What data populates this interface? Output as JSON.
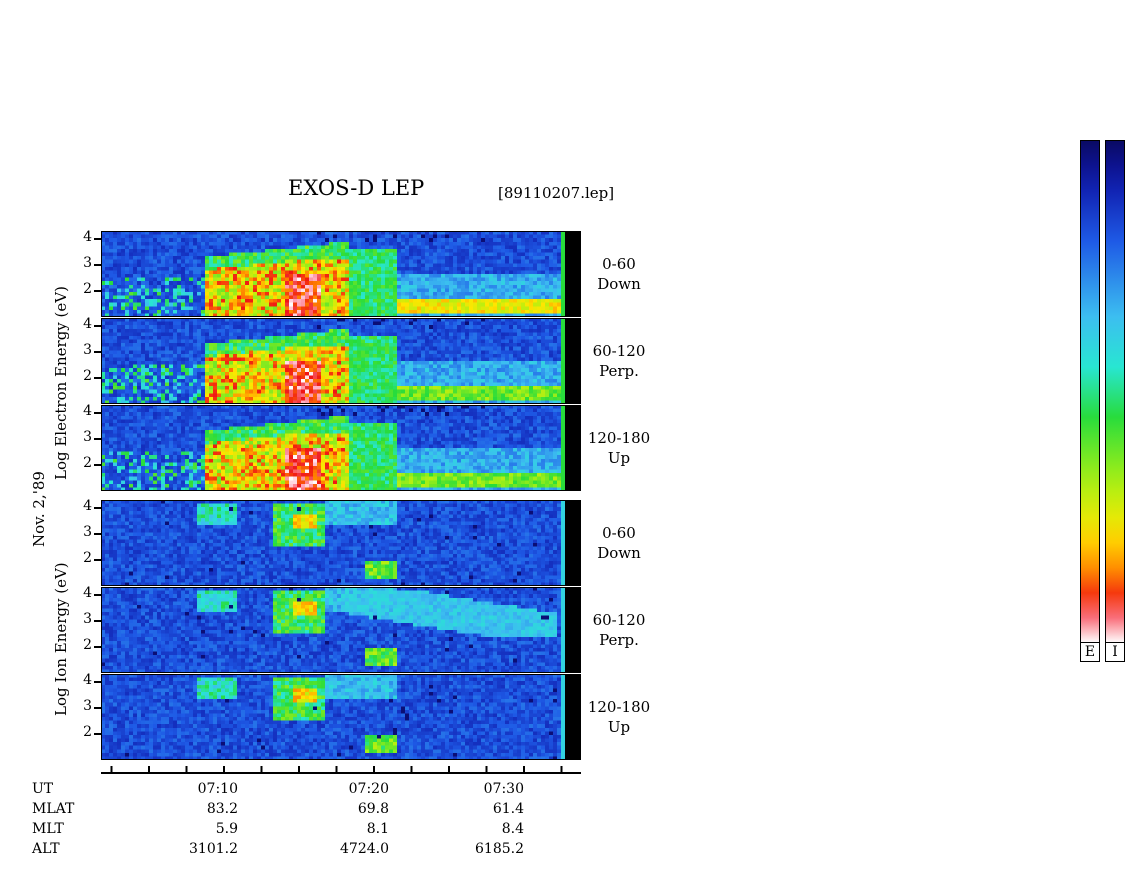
{
  "title": "EXOS-D LEP",
  "file_label": "[89110207.lep]",
  "date_label": "Nov. 2,'89",
  "electron_axis_label": "Log   Electron   Energy (eV)",
  "ion_axis_label": "Log   Ion   Energy (eV)",
  "chart_data": {
    "type": "heatmap",
    "panels": [
      {
        "species": "Electron",
        "pitch_range": "0-60",
        "direction": "Down",
        "y_ticks": [
          "4",
          "3",
          "2"
        ]
      },
      {
        "species": "Electron",
        "pitch_range": "60-120",
        "direction": "Perp.",
        "y_ticks": [
          "4",
          "3",
          "2"
        ]
      },
      {
        "species": "Electron",
        "pitch_range": "120-180",
        "direction": "Up",
        "y_ticks": [
          "4",
          "3",
          "2"
        ]
      },
      {
        "species": "Ion",
        "pitch_range": "0-60",
        "direction": "Down",
        "y_ticks": [
          "4",
          "3",
          "2"
        ]
      },
      {
        "species": "Ion",
        "pitch_range": "60-120",
        "direction": "Perp.",
        "y_ticks": [
          "4",
          "3",
          "2"
        ]
      },
      {
        "species": "Ion",
        "pitch_range": "120-180",
        "direction": "Up",
        "y_ticks": [
          "4",
          "3",
          "2"
        ]
      }
    ],
    "x_ticks": [
      "07:10",
      "07:20",
      "07:30"
    ],
    "ylim": [
      1,
      4
    ],
    "ephemeris": {
      "rows": [
        "UT",
        "MLAT",
        "MLT",
        "ALT"
      ],
      "values": [
        [
          "07:10",
          "83.2",
          "5.9",
          "3101.2"
        ],
        [
          "07:20",
          "69.8",
          "8.1",
          "4724.0"
        ],
        [
          "07:30",
          "61.4",
          "8.4",
          "6185.2"
        ]
      ]
    },
    "colorbar_labels": [
      "E",
      "I"
    ]
  }
}
